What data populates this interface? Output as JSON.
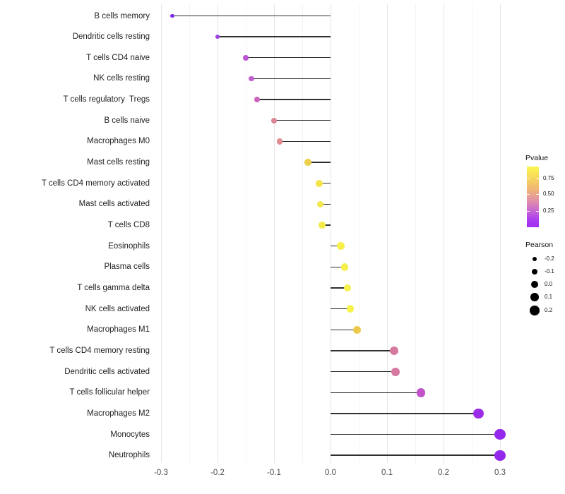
{
  "chart_data": {
    "type": "scatter",
    "variant": "lollipop",
    "title": "",
    "xlabel": "",
    "ylabel": "",
    "xlim": [
      -0.31,
      0.31
    ],
    "x_major_ticks": [
      -0.3,
      -0.2,
      -0.1,
      0.0,
      0.1,
      0.2,
      0.3
    ],
    "x_tick_labels": [
      "-0.3",
      "-0.2",
      "-0.1",
      "0.0",
      "0.1",
      "0.2",
      "0.3"
    ],
    "x_minor_gridlines": [
      -0.25,
      -0.15,
      -0.05,
      0.05,
      0.15,
      0.25
    ],
    "grid": "vertical-only",
    "baseline_x": 0.0,
    "rows": [
      {
        "label": "B cells memory",
        "pearson": -0.28,
        "color": "#7b2be0"
      },
      {
        "label": "Dendritic cells resting",
        "pearson": -0.2,
        "color": "#9b3fe3"
      },
      {
        "label": "T cells CD4 naive",
        "pearson": -0.15,
        "color": "#bc55d4"
      },
      {
        "label": "NK cells resting",
        "pearson": -0.14,
        "color": "#c05ecd"
      },
      {
        "label": "T cells regulatory  Tregs",
        "pearson": -0.13,
        "color": "#cc64bd"
      },
      {
        "label": "B cells naive",
        "pearson": -0.1,
        "color": "#dd8495"
      },
      {
        "label": "Macrophages M0",
        "pearson": -0.09,
        "color": "#e08d90"
      },
      {
        "label": "Mast cells resting",
        "pearson": -0.04,
        "color": "#eed04e"
      },
      {
        "label": "T cells CD4 memory activated",
        "pearson": -0.02,
        "color": "#f3e54a"
      },
      {
        "label": "Mast cells activated",
        "pearson": -0.018,
        "color": "#f4e94c"
      },
      {
        "label": "T cells CD8",
        "pearson": -0.015,
        "color": "#f4ea4a"
      },
      {
        "label": "Eosinophils",
        "pearson": 0.018,
        "color": "#f7f04b"
      },
      {
        "label": "Plasma cells",
        "pearson": 0.025,
        "color": "#f6ee4b"
      },
      {
        "label": "T cells gamma delta",
        "pearson": 0.03,
        "color": "#f7f04b"
      },
      {
        "label": "NK cells activated",
        "pearson": 0.035,
        "color": "#f8f24c"
      },
      {
        "label": "Macrophages M1",
        "pearson": 0.047,
        "color": "#edc84f"
      },
      {
        "label": "T cells CD4 memory resting",
        "pearson": 0.113,
        "color": "#d6799f"
      },
      {
        "label": "Dendritic cells activated",
        "pearson": 0.115,
        "color": "#d679a1"
      },
      {
        "label": "T cells follicular helper",
        "pearson": 0.16,
        "color": "#c253cb"
      },
      {
        "label": "Macrophages M2",
        "pearson": 0.262,
        "color": "#9b2ce8"
      },
      {
        "label": "Monocytes",
        "pearson": 0.3,
        "color": "#9428ec"
      },
      {
        "label": "Neutrophils",
        "pearson": 0.3,
        "color": "#9428ec"
      }
    ],
    "legends": {
      "pvalue": {
        "title": "Pvalue",
        "tick_labels": [
          "0.75",
          "0.50",
          "0.25"
        ],
        "gradient_top_color": "#fbf64e",
        "gradient_mid_color": "#e292a4",
        "gradient_bottom_color": "#a32df2"
      },
      "pearson": {
        "title": "Pearson",
        "items": [
          "-0.2",
          "-0.1",
          "0.0",
          "0.1",
          "0.2"
        ]
      }
    }
  }
}
